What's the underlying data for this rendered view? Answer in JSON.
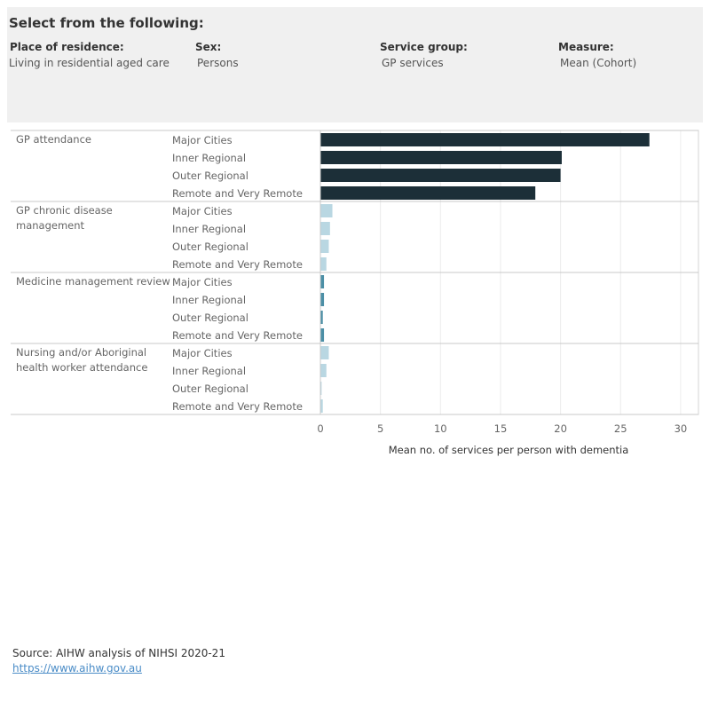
{
  "filters": {
    "heading": "Select from the following:",
    "items": [
      {
        "label": "Place of residence:",
        "value": "Living in residential aged care"
      },
      {
        "label": "Sex:",
        "value": "Persons"
      },
      {
        "label": "Service group:",
        "value": "GP services"
      },
      {
        "label": "Measure:",
        "value": "Mean (Cohort)"
      }
    ]
  },
  "chart_data": {
    "type": "bar",
    "orientation": "horizontal",
    "xlabel": "Mean no. of services per person with dementia",
    "xlim": [
      0,
      30
    ],
    "xticks": [
      0,
      5,
      10,
      15,
      20,
      25,
      30
    ],
    "grid": true,
    "groups": [
      {
        "name": "GP attendance",
        "color": "#1c2f38",
        "categories": [
          "Major Cities",
          "Inner Regional",
          "Outer Regional",
          "Remote and Very Remote"
        ],
        "values": [
          27.4,
          20.1,
          20.0,
          17.9
        ]
      },
      {
        "name": "GP chronic disease management",
        "color": "#b9d7e2",
        "categories": [
          "Major Cities",
          "Inner Regional",
          "Outer Regional",
          "Remote and Very Remote"
        ],
        "values": [
          1.0,
          0.8,
          0.7,
          0.5
        ]
      },
      {
        "name": "Medicine management review",
        "color": "#4c8fa6",
        "categories": [
          "Major Cities",
          "Inner Regional",
          "Outer Regional",
          "Remote and Very Remote"
        ],
        "values": [
          0.3,
          0.3,
          0.2,
          0.3
        ]
      },
      {
        "name": "Nursing and/or Aboriginal health worker attendance",
        "color": "#b9d7e2",
        "categories": [
          "Major Cities",
          "Inner Regional",
          "Outer Regional",
          "Remote and Very Remote"
        ],
        "values": [
          0.7,
          0.5,
          0.1,
          0.2
        ]
      }
    ]
  },
  "footer": {
    "source": "Source: AIHW analysis of NIHSI 2020-21",
    "link": "https://www.aihw.gov.au"
  }
}
